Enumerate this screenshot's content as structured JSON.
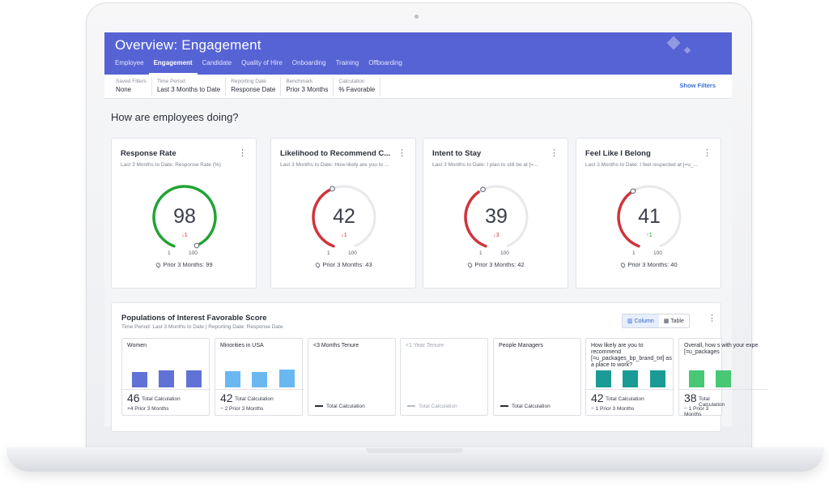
{
  "app": {
    "title": "Overview: Engagement",
    "tabs": [
      {
        "label": "Employee",
        "active": false
      },
      {
        "label": "Engagement",
        "active": true
      },
      {
        "label": "Candidate",
        "active": false
      },
      {
        "label": "Quality of Hire",
        "active": false
      },
      {
        "label": "Onboarding",
        "active": false
      },
      {
        "label": "Training",
        "active": false
      },
      {
        "label": "Offboarding",
        "active": false
      }
    ],
    "header_color": "#5663d4"
  },
  "filters": [
    {
      "label": "Saved Filters",
      "value": "None"
    },
    {
      "label": "Time Period",
      "value": "Last 3 Months to Date"
    },
    {
      "label": "Reporting Date",
      "value": "Response Date"
    },
    {
      "label": "Benchmark",
      "value": "Prior 3 Months"
    },
    {
      "label": "Calculation",
      "value": "% Favorable"
    }
  ],
  "show_filters": "Show Filters",
  "section_title": "How are employees doing?",
  "kpis": [
    {
      "title": "Response Rate",
      "subtitle": "Last 3 Months to Date: Response Rate (%)",
      "value": "98",
      "delta": "↓1",
      "delta_color": "#d0343c",
      "min": "1",
      "max": "100",
      "prior": "Prior 3 Months: 99",
      "arc_color": "#22a335",
      "fraction": 0.98,
      "benchmark_fraction": 0.99
    },
    {
      "title": "Likelihood to Recommend C...",
      "subtitle": "Last 3 Months to Date: How likely are you to ...",
      "value": "42",
      "delta": "↓1",
      "delta_color": "#d0343c",
      "min": "1",
      "max": "100",
      "prior": "Prior 3 Months: 43",
      "arc_color": "#d0343c",
      "fraction": 0.42,
      "benchmark_fraction": 0.43
    },
    {
      "title": "Intent to Stay",
      "subtitle": "Last 3 Months to Date: I plan to still be at [=...",
      "value": "39",
      "delta": "↓3",
      "delta_color": "#d0343c",
      "min": "1",
      "max": "100",
      "prior": "Prior 3 Months: 42",
      "arc_color": "#d0343c",
      "fraction": 0.39,
      "benchmark_fraction": 0.42
    },
    {
      "title": "Feel Like I Belong",
      "subtitle": "Last 3 Months to Date: I feel respected at [=u_...",
      "value": "41",
      "delta": "↑1",
      "delta_color": "#22a335",
      "min": "1",
      "max": "100",
      "prior": "Prior 3 Months: 40",
      "arc_color": "#d0343c",
      "fraction": 0.41,
      "benchmark_fraction": 0.4
    }
  ],
  "populations": {
    "title": "Populations of Interest Favorable Score",
    "subtitle": "Time Period: Last 3 Months to Date | Reporting Date: Response Date",
    "toggle": {
      "column": "Column",
      "table": "Table"
    },
    "calc_label": "Total Calculation",
    "cards": [
      {
        "name": "Women",
        "value": "46",
        "delta": "+4 Prior 3 Months",
        "bar_color": "#6072d6",
        "bars": [
          0.72,
          0.82,
          0.82
        ]
      },
      {
        "name": "Minorities in USA",
        "value": "42",
        "delta": "− 2 Prior 3 Months",
        "bar_color": "#6ab8f2",
        "bars": [
          0.75,
          0.72,
          0.85
        ]
      },
      {
        "name": "<3 Months Tenure",
        "value": "",
        "delta": "",
        "bar_color": "",
        "bars": [],
        "muted": false
      },
      {
        "name": "<1 Year Tenure",
        "value": "",
        "delta": "",
        "bar_color": "",
        "bars": [],
        "muted": true
      },
      {
        "name": "People Managers",
        "value": "",
        "delta": "",
        "bar_color": "",
        "bars": [],
        "muted": false
      },
      {
        "name": "How likely are you to recommend [=u_packages_bp_brand_txt] as a place to work?",
        "value": "42",
        "delta": "− 1 Prior 3 Months",
        "bar_color": "#1a9b95",
        "bars": [
          0.82,
          0.82,
          0.82
        ]
      },
      {
        "name": "Overall, how s with your expe [=u_packages",
        "value": "38",
        "delta": "− 1 Prior 3 Months",
        "bar_color": "#48c774",
        "bars": [
          0.82,
          0.82
        ]
      }
    ]
  }
}
